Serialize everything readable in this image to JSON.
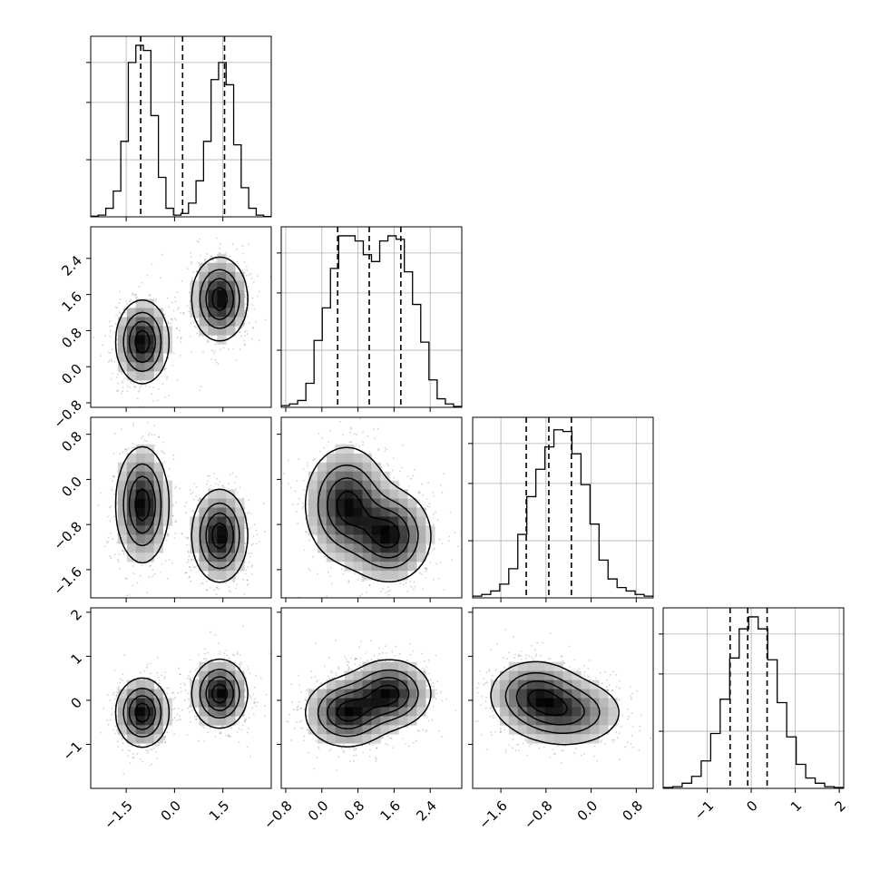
{
  "chart_data": {
    "type": "corner",
    "title": "",
    "show_grid": true,
    "variables": [
      {
        "range": [
          -2.6,
          3.0
        ],
        "ticks": [
          -1.5,
          0.0,
          1.5
        ],
        "tick_labels": [
          "−1.5",
          "0.0",
          "1.5"
        ],
        "quantiles": [
          -1.05,
          0.25,
          1.55
        ],
        "hist": [
          0.004,
          0.01,
          0.05,
          0.15,
          0.44,
          0.9,
          1.0,
          0.97,
          0.59,
          0.23,
          0.05,
          0.01,
          0.02,
          0.08,
          0.21,
          0.44,
          0.8,
          0.9,
          0.77,
          0.42,
          0.17,
          0.05,
          0.01,
          0.002
        ]
      },
      {
        "range": [
          -0.9,
          3.1
        ],
        "ticks": [
          -0.8,
          0.0,
          0.8,
          1.6,
          2.4
        ],
        "tick_labels": [
          "−0.8",
          "0.0",
          "0.8",
          "1.6",
          "2.4"
        ],
        "quantiles": [
          0.35,
          1.05,
          1.75
        ],
        "hist": [
          0.01,
          0.02,
          0.04,
          0.14,
          0.39,
          0.58,
          0.81,
          1.0,
          1.0,
          0.97,
          0.89,
          0.85,
          0.97,
          1.0,
          0.98,
          0.79,
          0.6,
          0.38,
          0.16,
          0.05,
          0.02,
          0.005
        ]
      },
      {
        "range": [
          -2.1,
          1.1
        ],
        "ticks": [
          -1.6,
          -0.8,
          0.0,
          0.8
        ],
        "tick_labels": [
          "−1.6",
          "−0.8",
          "0.0",
          "0.8"
        ],
        "quantiles": [
          -1.15,
          -0.75,
          -0.35
        ],
        "hist": [
          0.01,
          0.02,
          0.04,
          0.08,
          0.17,
          0.37,
          0.59,
          0.75,
          0.88,
          0.98,
          0.97,
          0.84,
          0.66,
          0.43,
          0.22,
          0.11,
          0.06,
          0.04,
          0.02,
          0.01
        ]
      },
      {
        "range": [
          -2.0,
          2.1
        ],
        "ticks": [
          -1,
          0,
          1,
          2
        ],
        "tick_labels": [
          "−1",
          "0",
          "1",
          "2"
        ],
        "quantiles": [
          -0.48,
          -0.08,
          0.36
        ],
        "hist": [
          0.005,
          0.01,
          0.03,
          0.07,
          0.16,
          0.32,
          0.52,
          0.76,
          0.93,
          1.0,
          0.93,
          0.75,
          0.5,
          0.3,
          0.14,
          0.06,
          0.03,
          0.01,
          0.005
        ]
      }
    ],
    "components": [
      {
        "weight": 0.5,
        "mean": [
          -1.0,
          0.55,
          -0.45,
          -0.28
        ],
        "sd": [
          0.4,
          0.45,
          0.5,
          0.38
        ]
      },
      {
        "weight": 0.5,
        "mean": [
          1.4,
          1.5,
          -1.0,
          0.15
        ],
        "sd": [
          0.42,
          0.45,
          0.4,
          0.38
        ]
      }
    ],
    "contour_levels": [
      0.12,
      0.35,
      0.6,
      0.85
    ]
  }
}
